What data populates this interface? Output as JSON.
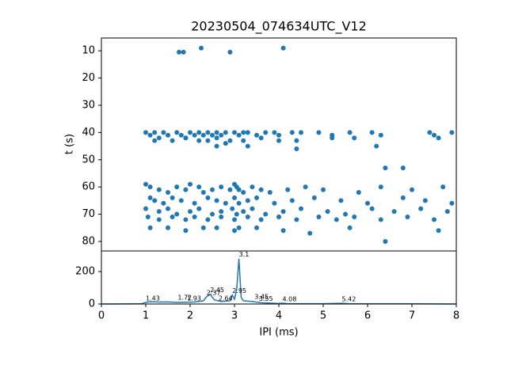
{
  "chart_data": [
    {
      "type": "scatter",
      "title": "20230504_074634UTC_V12",
      "ylabel": "t (s)",
      "color": "#1f77b4",
      "xlim": [
        0,
        8
      ],
      "ylim": [
        83.5,
        5.3
      ],
      "yticks": [
        10,
        20,
        30,
        40,
        50,
        60,
        70,
        80
      ],
      "x": [
        1.75,
        1.85,
        2.25,
        2.9,
        4.1,
        1.0,
        1.1,
        1.2,
        1.3,
        1.4,
        1.5,
        1.7,
        1.8,
        1.9,
        2.0,
        2.1,
        2.2,
        2.3,
        2.4,
        2.5,
        2.6,
        2.7,
        2.8,
        3.0,
        3.1,
        3.2,
        3.3,
        3.5,
        3.7,
        3.9,
        4.0,
        4.3,
        4.5,
        4.9,
        5.2,
        5.6,
        6.1,
        6.3,
        7.4,
        7.5,
        7.9,
        1.2,
        1.6,
        1.9,
        2.2,
        2.4,
        2.6,
        2.9,
        3.2,
        3.6,
        4.0,
        4.4,
        5.2,
        5.7,
        6.2,
        7.6,
        2.6,
        2.8,
        3.3,
        4.4,
        6.4,
        6.8,
        1.0,
        1.1,
        1.3,
        1.5,
        1.7,
        1.9,
        2.0,
        2.2,
        2.3,
        2.5,
        2.7,
        2.9,
        3.0,
        3.05,
        3.1,
        3.2,
        3.4,
        3.6,
        3.8,
        4.2,
        4.6,
        5.0,
        5.8,
        6.3,
        7.0,
        7.7,
        1.1,
        1.2,
        1.4,
        1.6,
        1.8,
        2.1,
        2.4,
        2.6,
        2.8,
        3.0,
        3.1,
        3.3,
        3.5,
        3.9,
        4.3,
        4.8,
        5.4,
        6.0,
        6.8,
        7.3,
        7.9,
        1.0,
        1.3,
        1.5,
        1.7,
        2.0,
        2.2,
        2.5,
        2.7,
        2.95,
        3.05,
        3.2,
        3.4,
        3.7,
        4.1,
        4.5,
        5.1,
        5.5,
        6.1,
        6.6,
        7.2,
        7.8,
        1.05,
        1.3,
        1.6,
        1.9,
        2.1,
        2.4,
        2.7,
        3.0,
        3.3,
        3.6,
        4.0,
        4.4,
        4.9,
        5.3,
        5.7,
        6.3,
        6.9,
        7.5,
        1.1,
        1.5,
        1.9,
        2.3,
        2.6,
        3.0,
        3.1,
        3.5,
        4.1,
        4.7,
        5.6,
        6.4,
        7.6
      ],
      "y": [
        10.5,
        10.5,
        9,
        10.5,
        9,
        40,
        41,
        40,
        42,
        40,
        41,
        40,
        41,
        42,
        40,
        41,
        40,
        41,
        40,
        41,
        40,
        41,
        40,
        40,
        41,
        40,
        40,
        41,
        40,
        40,
        41,
        40,
        40,
        40,
        41,
        40,
        40,
        41,
        40,
        41,
        40,
        43,
        43,
        42,
        43,
        43,
        42,
        43,
        43,
        42,
        43,
        43,
        42,
        42,
        45,
        42,
        45,
        44,
        45,
        46,
        53,
        53,
        59,
        60,
        61,
        62,
        60,
        61,
        59,
        60,
        62,
        61,
        60,
        61,
        59,
        60,
        61,
        62,
        60,
        61,
        62,
        61,
        60,
        61,
        62,
        60,
        61,
        60,
        64,
        65,
        66,
        64,
        65,
        66,
        64,
        65,
        66,
        64,
        66,
        65,
        64,
        66,
        65,
        64,
        65,
        66,
        64,
        65,
        66,
        68,
        69,
        68,
        70,
        69,
        68,
        70,
        69,
        68,
        70,
        69,
        68,
        70,
        69,
        68,
        69,
        70,
        68,
        69,
        68,
        69,
        71,
        72,
        71,
        72,
        71,
        72,
        71,
        72,
        71,
        72,
        71,
        72,
        71,
        72,
        71,
        72,
        71,
        72,
        75,
        75,
        76,
        75,
        75,
        76,
        75,
        75,
        76,
        77,
        75,
        80,
        76
      ]
    },
    {
      "type": "line",
      "xlabel": "IPI (ms)",
      "color": "#1f77b4",
      "xlim": [
        0,
        8
      ],
      "xticks": [
        0,
        1,
        2,
        3,
        4,
        5,
        6,
        7,
        8
      ],
      "ylim": [
        0,
        327
      ],
      "yticks": [
        0,
        200
      ],
      "x": [
        0,
        0.9,
        1.0,
        1.1,
        1.3,
        1.5,
        1.7,
        1.9,
        2.1,
        2.3,
        2.37,
        2.45,
        2.55,
        2.7,
        2.9,
        2.95,
        3.0,
        3.05,
        3.1,
        3.15,
        3.2,
        3.4,
        3.6,
        4.0,
        4.08,
        4.2,
        5.0,
        5.42,
        5.6,
        6.0,
        7.0,
        8.0
      ],
      "values": [
        0,
        1,
        10,
        14,
        12,
        13,
        10,
        11,
        12,
        20,
        45,
        60,
        25,
        15,
        20,
        55,
        30,
        90,
        280,
        40,
        20,
        15,
        8,
        3,
        5,
        2,
        2,
        4,
        1,
        1,
        1,
        0
      ],
      "annotations": [
        {
          "text": "3.1",
          "x": 3.1,
          "y": 280
        },
        {
          "text": "2.45",
          "x": 2.45,
          "y": 60
        },
        {
          "text": "2.37",
          "x": 2.37,
          "y": 45
        },
        {
          "text": "2.95",
          "x": 2.95,
          "y": 55
        },
        {
          "text": "3.45",
          "x": 3.45,
          "y": 20
        },
        {
          "text": "3.55",
          "x": 3.55,
          "y": 8
        },
        {
          "text": "2.64",
          "x": 2.64,
          "y": 10
        },
        {
          "text": "1.43",
          "x": 1.0,
          "y": 10
        },
        {
          "text": "1.72",
          "x": 1.72,
          "y": 15
        },
        {
          "text": "1.93",
          "x": 1.93,
          "y": 10
        },
        {
          "text": "4.08",
          "x": 4.08,
          "y": 5
        },
        {
          "text": "5.42",
          "x": 5.42,
          "y": 4
        }
      ]
    }
  ]
}
